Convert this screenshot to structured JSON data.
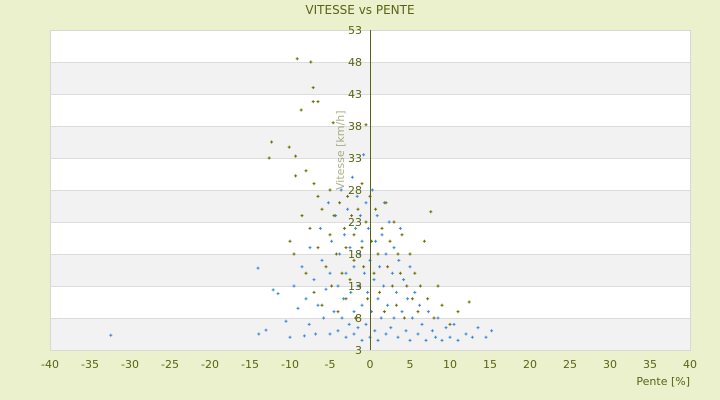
{
  "chart_data": {
    "type": "scatter",
    "title": "VITESSE vs PENTE",
    "xlabel": "Pente [%]",
    "ylabel": "Vitesse [km/h]",
    "xlim": [
      -40,
      40
    ],
    "ylim": [
      3,
      53
    ],
    "xticks": [
      -40,
      -35,
      -30,
      -25,
      -20,
      -15,
      -10,
      -5,
      0,
      5,
      10,
      15,
      20,
      25,
      30,
      35,
      40
    ],
    "yticks": [
      3,
      8,
      13,
      18,
      23,
      28,
      33,
      38,
      43,
      48,
      53
    ],
    "grid": "horizontal alternating bands",
    "legend": "none",
    "colors": {
      "series_blue": "#3a87d6",
      "series_olive": "#6b6b00",
      "axis": "#5a6314",
      "background": "#ebf0cd",
      "band": "#f2f2f2"
    },
    "series": [
      {
        "color": "#3a87d6",
        "points": [
          [
            -32.4,
            5.3
          ],
          [
            -14,
            15.8
          ],
          [
            -13.9,
            5.5
          ],
          [
            -13,
            6.1
          ],
          [
            -12.1,
            12.4
          ],
          [
            -11.5,
            11.8
          ],
          [
            -10.5,
            7.5
          ],
          [
            -10,
            5
          ],
          [
            -9.5,
            13
          ],
          [
            -9,
            9.5
          ],
          [
            -8.5,
            16
          ],
          [
            -8.2,
            5.2
          ],
          [
            -8,
            11
          ],
          [
            -7.6,
            7
          ],
          [
            -7.5,
            19
          ],
          [
            -7,
            14
          ],
          [
            -6.8,
            5.5
          ],
          [
            -6.5,
            10
          ],
          [
            -6.2,
            22
          ],
          [
            -6,
            17
          ],
          [
            -5.8,
            8
          ],
          [
            -5.5,
            12.5
          ],
          [
            -5.2,
            26
          ],
          [
            -5,
            5.5
          ],
          [
            -5,
            15
          ],
          [
            -4.8,
            20
          ],
          [
            -4.5,
            9
          ],
          [
            -4.3,
            24
          ],
          [
            -4,
            6
          ],
          [
            -4,
            13
          ],
          [
            -3.8,
            18
          ],
          [
            -3.6,
            28
          ],
          [
            -3.5,
            8
          ],
          [
            -3.3,
            11
          ],
          [
            -3.2,
            21
          ],
          [
            -3,
            5
          ],
          [
            -3,
            15
          ],
          [
            -2.8,
            25
          ],
          [
            -2.6,
            7
          ],
          [
            -2.5,
            19
          ],
          [
            -2.4,
            12
          ],
          [
            -2.2,
            30
          ],
          [
            -2,
            5.5
          ],
          [
            -2,
            9
          ],
          [
            -2,
            16
          ],
          [
            -1.8,
            22
          ],
          [
            -1.6,
            27
          ],
          [
            -1.5,
            6.5
          ],
          [
            -1.5,
            13
          ],
          [
            -1.3,
            18
          ],
          [
            -1.2,
            24
          ],
          [
            -1,
            4.5
          ],
          [
            -1,
            10
          ],
          [
            -1,
            20
          ],
          [
            -0.8,
            33.5
          ],
          [
            -0.7,
            15
          ],
          [
            -0.5,
            7
          ],
          [
            -0.5,
            26
          ],
          [
            -0.3,
            12
          ],
          [
            -0.2,
            22
          ],
          [
            0,
            5
          ],
          [
            0,
            17
          ],
          [
            0.2,
            9
          ],
          [
            0.3,
            28
          ],
          [
            0.5,
            14
          ],
          [
            0.6,
            6
          ],
          [
            0.7,
            20
          ],
          [
            0.9,
            24
          ],
          [
            1,
            4.5
          ],
          [
            1,
            11
          ],
          [
            1.2,
            16
          ],
          [
            1.4,
            8
          ],
          [
            1.5,
            21
          ],
          [
            1.7,
            13
          ],
          [
            1.8,
            26
          ],
          [
            2,
            5.5
          ],
          [
            2,
            18
          ],
          [
            2.2,
            10
          ],
          [
            2.4,
            23
          ],
          [
            2.6,
            6.5
          ],
          [
            2.8,
            15
          ],
          [
            3,
            8
          ],
          [
            3,
            19
          ],
          [
            3.3,
            12
          ],
          [
            3.5,
            5
          ],
          [
            3.6,
            17
          ],
          [
            3.8,
            22
          ],
          [
            4,
            9
          ],
          [
            4.2,
            14
          ],
          [
            4.5,
            6
          ],
          [
            4.7,
            11
          ],
          [
            5,
            4.5
          ],
          [
            5,
            16
          ],
          [
            5.3,
            8
          ],
          [
            5.6,
            12
          ],
          [
            6,
            5.5
          ],
          [
            6.2,
            10
          ],
          [
            6.5,
            7
          ],
          [
            7,
            4.5
          ],
          [
            7.3,
            9
          ],
          [
            7.8,
            6
          ],
          [
            8.2,
            5
          ],
          [
            8.5,
            8
          ],
          [
            9,
            4.5
          ],
          [
            9.5,
            6.5
          ],
          [
            10,
            5
          ],
          [
            10.5,
            7
          ],
          [
            11,
            4.5
          ],
          [
            12,
            5.5
          ],
          [
            12.8,
            5
          ],
          [
            13.5,
            6.5
          ],
          [
            14.5,
            5
          ],
          [
            15.2,
            6
          ]
        ]
      },
      {
        "color": "#6b6b00",
        "points": [
          [
            -9.1,
            48.5
          ],
          [
            -7.4,
            48
          ],
          [
            -7.1,
            44
          ],
          [
            -8.6,
            40.5
          ],
          [
            -7.1,
            41.8
          ],
          [
            -6.5,
            41.8
          ],
          [
            -4.6,
            38.5
          ],
          [
            -0.5,
            38.2
          ],
          [
            -12.3,
            35.5
          ],
          [
            -10.1,
            34.7
          ],
          [
            -12.6,
            33
          ],
          [
            -9.3,
            33.3
          ],
          [
            -9.3,
            30.2
          ],
          [
            -8,
            31
          ],
          [
            -7,
            29
          ],
          [
            -6.5,
            27
          ],
          [
            -10,
            20
          ],
          [
            -9.5,
            18
          ],
          [
            -8.5,
            24
          ],
          [
            -8,
            15
          ],
          [
            -7.5,
            22
          ],
          [
            -7,
            12
          ],
          [
            -6.5,
            19
          ],
          [
            -6,
            25
          ],
          [
            -6,
            10
          ],
          [
            -5.5,
            16
          ],
          [
            -5,
            28
          ],
          [
            -5,
            21
          ],
          [
            -4.8,
            13
          ],
          [
            -4.5,
            24
          ],
          [
            -4.2,
            18
          ],
          [
            -4,
            9
          ],
          [
            -3.8,
            26
          ],
          [
            -3.5,
            15
          ],
          [
            -3.2,
            22
          ],
          [
            -3,
            19
          ],
          [
            -3,
            11
          ],
          [
            -2.8,
            27
          ],
          [
            -2.5,
            14
          ],
          [
            -2.3,
            24
          ],
          [
            -2,
            17
          ],
          [
            -2,
            21
          ],
          [
            -1.8,
            8
          ],
          [
            -1.5,
            25
          ],
          [
            -1.3,
            13
          ],
          [
            -1,
            29
          ],
          [
            -1,
            19
          ],
          [
            -0.8,
            16
          ],
          [
            -0.5,
            23
          ],
          [
            -0.3,
            11
          ],
          [
            0,
            27
          ],
          [
            0.2,
            20
          ],
          [
            0.5,
            15
          ],
          [
            0.7,
            25
          ],
          [
            1,
            18
          ],
          [
            1.2,
            12
          ],
          [
            1.5,
            22
          ],
          [
            1.8,
            9
          ],
          [
            2,
            26
          ],
          [
            2.2,
            16
          ],
          [
            2.5,
            20
          ],
          [
            2.8,
            13
          ],
          [
            3,
            23
          ],
          [
            3.3,
            10
          ],
          [
            3.5,
            18
          ],
          [
            3.8,
            15
          ],
          [
            4,
            21
          ],
          [
            4.3,
            8
          ],
          [
            4.6,
            13
          ],
          [
            5,
            18
          ],
          [
            5.3,
            11
          ],
          [
            5.6,
            15
          ],
          [
            6,
            9
          ],
          [
            6.3,
            13
          ],
          [
            6.8,
            20
          ],
          [
            7.2,
            11
          ],
          [
            7.6,
            24.6
          ],
          [
            8,
            8
          ],
          [
            8.5,
            13
          ],
          [
            9,
            10
          ],
          [
            10,
            7
          ],
          [
            11,
            9
          ],
          [
            12.4,
            10.5
          ]
        ]
      }
    ]
  }
}
